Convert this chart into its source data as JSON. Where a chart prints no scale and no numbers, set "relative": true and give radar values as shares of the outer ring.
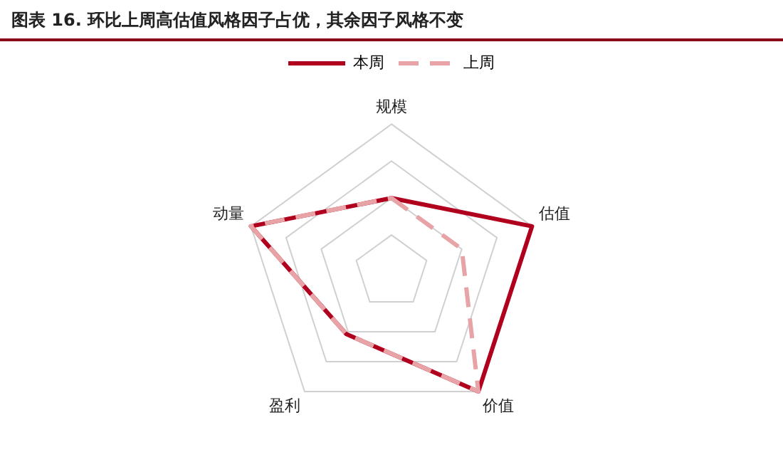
{
  "chart_data": {
    "type": "radar",
    "title": "图表 16. 环比上周高估值风格因子占优，其余因子风格不变",
    "relative": true,
    "categories": [
      "规模",
      "估值",
      "价值",
      "盈利",
      "动量"
    ],
    "series": [
      {
        "name": "本周",
        "color": "#b0001e",
        "line_style": "solid",
        "values": [
          0.5,
          1.0,
          1.0,
          0.52,
          1.0
        ]
      },
      {
        "name": "上周",
        "color": "#e8a3a6",
        "line_style": "dashed",
        "values": [
          0.5,
          0.5,
          1.0,
          0.52,
          1.0
        ]
      }
    ],
    "legend": "top",
    "marker": "none",
    "grid": true
  }
}
